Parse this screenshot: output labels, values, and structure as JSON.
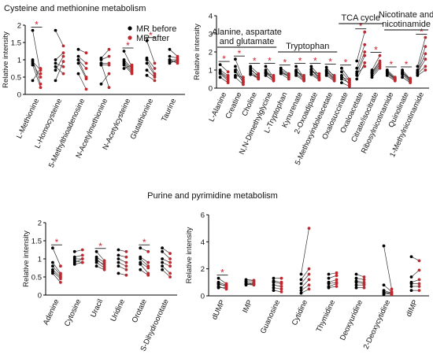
{
  "chart_data": [
    {
      "type": "paired-dot",
      "title": "Cysteine and methionine metabolism",
      "y_label": "Relative intensity",
      "categories": [
        "L-Methionine",
        "L-Homocysteine",
        "5-Methylthioadenosine",
        "N-Acetylmethionine",
        "N-Acetylcysteine",
        "Glutathionine",
        "Taurine"
      ],
      "significance": [
        "*",
        null,
        null,
        null,
        "*",
        "*",
        null
      ],
      "series": [
        {
          "name": "MR before",
          "color": "#000000",
          "values": [
            [
              1.85,
              1.0,
              0.95,
              0.9,
              0.85,
              0.4
            ],
            [
              1.85,
              1.0,
              0.9,
              0.8,
              0.7,
              0.4
            ],
            [
              1.3,
              1.1,
              1.0,
              1.0,
              0.9,
              0.6
            ],
            [
              1.05,
              1.0,
              0.9,
              0.85,
              0.3,
              0.9
            ],
            [
              1.25,
              1.0,
              0.95,
              0.9,
              0.85,
              0.75
            ],
            [
              1.55,
              1.05,
              1.0,
              0.9,
              0.7,
              0.55
            ],
            [
              1.3,
              1.1,
              1.0,
              1.0,
              0.95,
              0.9
            ]
          ]
        },
        {
          "name": "MR after",
          "color": "#c0282f",
          "values": [
            [
              0.6,
              0.3,
              0.7,
              0.5,
              0.2,
              0.75
            ],
            [
              1.4,
              1.2,
              0.8,
              0.6,
              1.1,
              0.95
            ],
            [
              1.2,
              0.9,
              0.75,
              0.5,
              0.45,
              0.15
            ],
            [
              1.3,
              1.1,
              0.9,
              0.85,
              0.6,
              0.2
            ],
            [
              0.8,
              0.75,
              0.7,
              0.65,
              0.6,
              0.85
            ],
            [
              0.9,
              0.75,
              0.6,
              0.55,
              0.5,
              0.4
            ],
            [
              1.1,
              1.05,
              1.0,
              0.9,
              0.95,
              1.0
            ]
          ]
        }
      ],
      "legend": "upper right",
      "ylim": [
        0,
        2
      ],
      "yticks": [
        0,
        0.5,
        1,
        1.5,
        2
      ]
    },
    {
      "type": "paired-dot",
      "y_label": "Relative intensity",
      "categories": [
        "L-Alanine",
        "Creatine",
        "Choline",
        "N,N-Dimethylglycine",
        "L-Tryptophan",
        "Kynurenate",
        "2-Oxoadipate",
        "5-Methoxyindoleacetate",
        "Oxalosuccinate",
        "Oxaloacetate",
        "Citrate/isocitrate",
        "Ribosylnicotinamide",
        "Quinolinate",
        "1-Methylnicotinamide"
      ],
      "significance": [
        "*",
        "*",
        "*",
        "*",
        "*",
        "*",
        "*",
        "*",
        "*",
        "*",
        "*",
        "*",
        "*",
        "*"
      ],
      "groups": [
        {
          "label_lines": [
            "Alanine, aspartate",
            "and glutamate"
          ],
          "from": 0,
          "to": 3
        },
        {
          "label_lines": [
            "Tryptophan"
          ],
          "from": 4,
          "to": 7
        },
        {
          "label_lines": [
            "TCA cycle"
          ],
          "from": 8,
          "to": 10
        },
        {
          "label_lines": [
            "Nicotinate and",
            "nicotinamide"
          ],
          "from": 11,
          "to": 13
        }
      ],
      "series": [
        {
          "color": "#000000",
          "values": [
            [
              1.3,
              1.0,
              0.9,
              0.85,
              0.8,
              0.6
            ],
            [
              1.6,
              1.2,
              1.0,
              0.9,
              0.7,
              0.6
            ],
            [
              1.2,
              1.1,
              1.0,
              0.9,
              0.8,
              0.75
            ],
            [
              1.2,
              1.0,
              0.9,
              0.85,
              0.8,
              0.7
            ],
            [
              1.1,
              1.0,
              0.95,
              0.9,
              0.85,
              0.8
            ],
            [
              1.2,
              1.0,
              0.95,
              0.9,
              0.8,
              0.7
            ],
            [
              1.2,
              1.05,
              1.0,
              0.9,
              0.85,
              0.75
            ],
            [
              1.15,
              1.0,
              0.95,
              0.9,
              0.8,
              0.7
            ],
            [
              1.1,
              0.9,
              0.7,
              0.5,
              0.3,
              0.6
            ],
            [
              1.5,
              1.1,
              0.9,
              0.7,
              0.5,
              0.8
            ],
            [
              1.0,
              0.9,
              0.85,
              0.8,
              0.7,
              0.6
            ],
            [
              1.0,
              0.9,
              0.85,
              0.8,
              0.7,
              0.95
            ],
            [
              1.0,
              0.9,
              0.85,
              0.8,
              0.75,
              0.6
            ],
            [
              1.2,
              1.0,
              0.9,
              0.85,
              0.8,
              0.7
            ]
          ]
        },
        {
          "color": "#c0282f",
          "values": [
            [
              0.9,
              0.7,
              0.6,
              0.5,
              0.4,
              0.3
            ],
            [
              0.5,
              0.4,
              0.3,
              0.35,
              0.6,
              0.2
            ],
            [
              0.8,
              0.6,
              0.7,
              0.55,
              0.5,
              0.6
            ],
            [
              0.6,
              0.5,
              0.45,
              0.7,
              0.55,
              0.4
            ],
            [
              0.8,
              0.75,
              0.6,
              0.7,
              0.65,
              0.5
            ],
            [
              0.6,
              0.55,
              0.5,
              0.7,
              0.45,
              0.4
            ],
            [
              0.7,
              0.6,
              0.55,
              0.8,
              0.5,
              0.45
            ],
            [
              0.6,
              0.7,
              0.55,
              0.5,
              0.45,
              0.4
            ],
            [
              0.5,
              0.4,
              0.2,
              0.3,
              0.1,
              0.45
            ],
            [
              3.1,
              2.4,
              2.0,
              1.8,
              1.4,
              1.2
            ],
            [
              1.8,
              1.5,
              1.4,
              1.3,
              1.2,
              1.1
            ],
            [
              0.6,
              0.55,
              0.5,
              0.45,
              0.4,
              0.5
            ],
            [
              0.5,
              0.45,
              0.4,
              0.55,
              0.35,
              0.3
            ],
            [
              2.8,
              2.3,
              1.9,
              1.6,
              1.2,
              1.0
            ]
          ]
        }
      ],
      "ylim": [
        0,
        4
      ],
      "yticks": [
        0,
        1,
        2,
        3,
        4
      ]
    },
    {
      "type": "paired-dot",
      "title": "Purine and pyrimidine metabolism",
      "y_label": "Relative intensity",
      "categories": [
        "Adenine",
        "Cytosine",
        "Uracil",
        "Uridine",
        "Orotate",
        "S-Dihydroorotate"
      ],
      "significance": [
        "*",
        null,
        "*",
        null,
        "*",
        null
      ],
      "series": [
        {
          "color": "#000000",
          "values": [
            [
              1.3,
              0.9,
              0.8,
              0.7,
              0.65,
              0.6
            ],
            [
              1.2,
              1.05,
              1.0,
              0.95,
              0.9,
              0.85
            ],
            [
              1.2,
              1.05,
              1.0,
              0.95,
              0.9,
              0.8
            ],
            [
              1.25,
              1.1,
              1.0,
              0.9,
              0.8,
              0.6
            ],
            [
              1.3,
              1.05,
              1.0,
              0.9,
              0.85,
              0.7
            ],
            [
              1.3,
              1.2,
              1.0,
              0.9,
              0.8,
              0.7
            ]
          ]
        },
        {
          "color": "#c0282f",
          "values": [
            [
              0.8,
              0.6,
              0.55,
              0.5,
              0.45,
              0.35
            ],
            [
              1.25,
              1.1,
              1.0,
              0.9,
              1.0,
              0.9
            ],
            [
              0.95,
              0.9,
              0.8,
              0.85,
              0.75,
              0.7
            ],
            [
              1.2,
              1.05,
              0.9,
              0.8,
              0.7,
              0.55
            ],
            [
              1.2,
              0.9,
              0.8,
              0.75,
              0.6,
              0.55
            ],
            [
              1.15,
              1.0,
              0.9,
              0.8,
              0.6,
              0.5
            ]
          ]
        }
      ],
      "ylim": [
        0,
        2
      ],
      "yticks": [
        0,
        0.5,
        1,
        1.5,
        2
      ]
    },
    {
      "type": "paired-dot",
      "y_label": "Relative intensity",
      "categories": [
        "dUMP",
        "IMP",
        "Guanosine",
        "Cytidine",
        "Thymidine",
        "Deoxyuridine",
        "2-Deoxycytidine",
        "dIMP"
      ],
      "significance": [
        "*",
        null,
        null,
        null,
        null,
        null,
        null,
        null
      ],
      "series": [
        {
          "color": "#000000",
          "values": [
            [
              1.3,
              1.0,
              0.9,
              0.85,
              0.7,
              0.6
            ],
            [
              1.2,
              1.1,
              1.0,
              0.9,
              0.85,
              0.8
            ],
            [
              1.3,
              1.1,
              1.0,
              0.8,
              0.6,
              0.4
            ],
            [
              1.6,
              1.2,
              0.9,
              0.6,
              0.4,
              0.2
            ],
            [
              1.6,
              1.3,
              1.0,
              0.9,
              0.7,
              0.6
            ],
            [
              1.6,
              1.3,
              1.1,
              1.0,
              0.8,
              0.6
            ],
            [
              3.7,
              0.8,
              0.4,
              0.3,
              0.2,
              0.1
            ],
            [
              2.9,
              1.4,
              1.0,
              0.9,
              0.7,
              0.4
            ]
          ]
        },
        {
          "color": "#c0282f",
          "values": [
            [
              0.9,
              0.8,
              0.7,
              0.75,
              0.5,
              0.6
            ],
            [
              1.15,
              1.1,
              0.9,
              0.85,
              0.8,
              1.0
            ],
            [
              1.3,
              1.0,
              0.9,
              0.7,
              0.5,
              0.3
            ],
            [
              5.0,
              2.0,
              1.6,
              1.2,
              0.8,
              0.5
            ],
            [
              1.7,
              1.5,
              1.2,
              1.0,
              0.9,
              0.7
            ],
            [
              1.4,
              1.2,
              1.0,
              0.9,
              0.8,
              0.6
            ],
            [
              0.5,
              0.3,
              0.2,
              0.15,
              0.1,
              0.3
            ],
            [
              2.6,
              1.9,
              1.2,
              0.9,
              0.7,
              0.4
            ]
          ]
        }
      ],
      "ylim": [
        0,
        6
      ],
      "yticks": [
        0,
        2,
        4,
        6
      ]
    }
  ]
}
